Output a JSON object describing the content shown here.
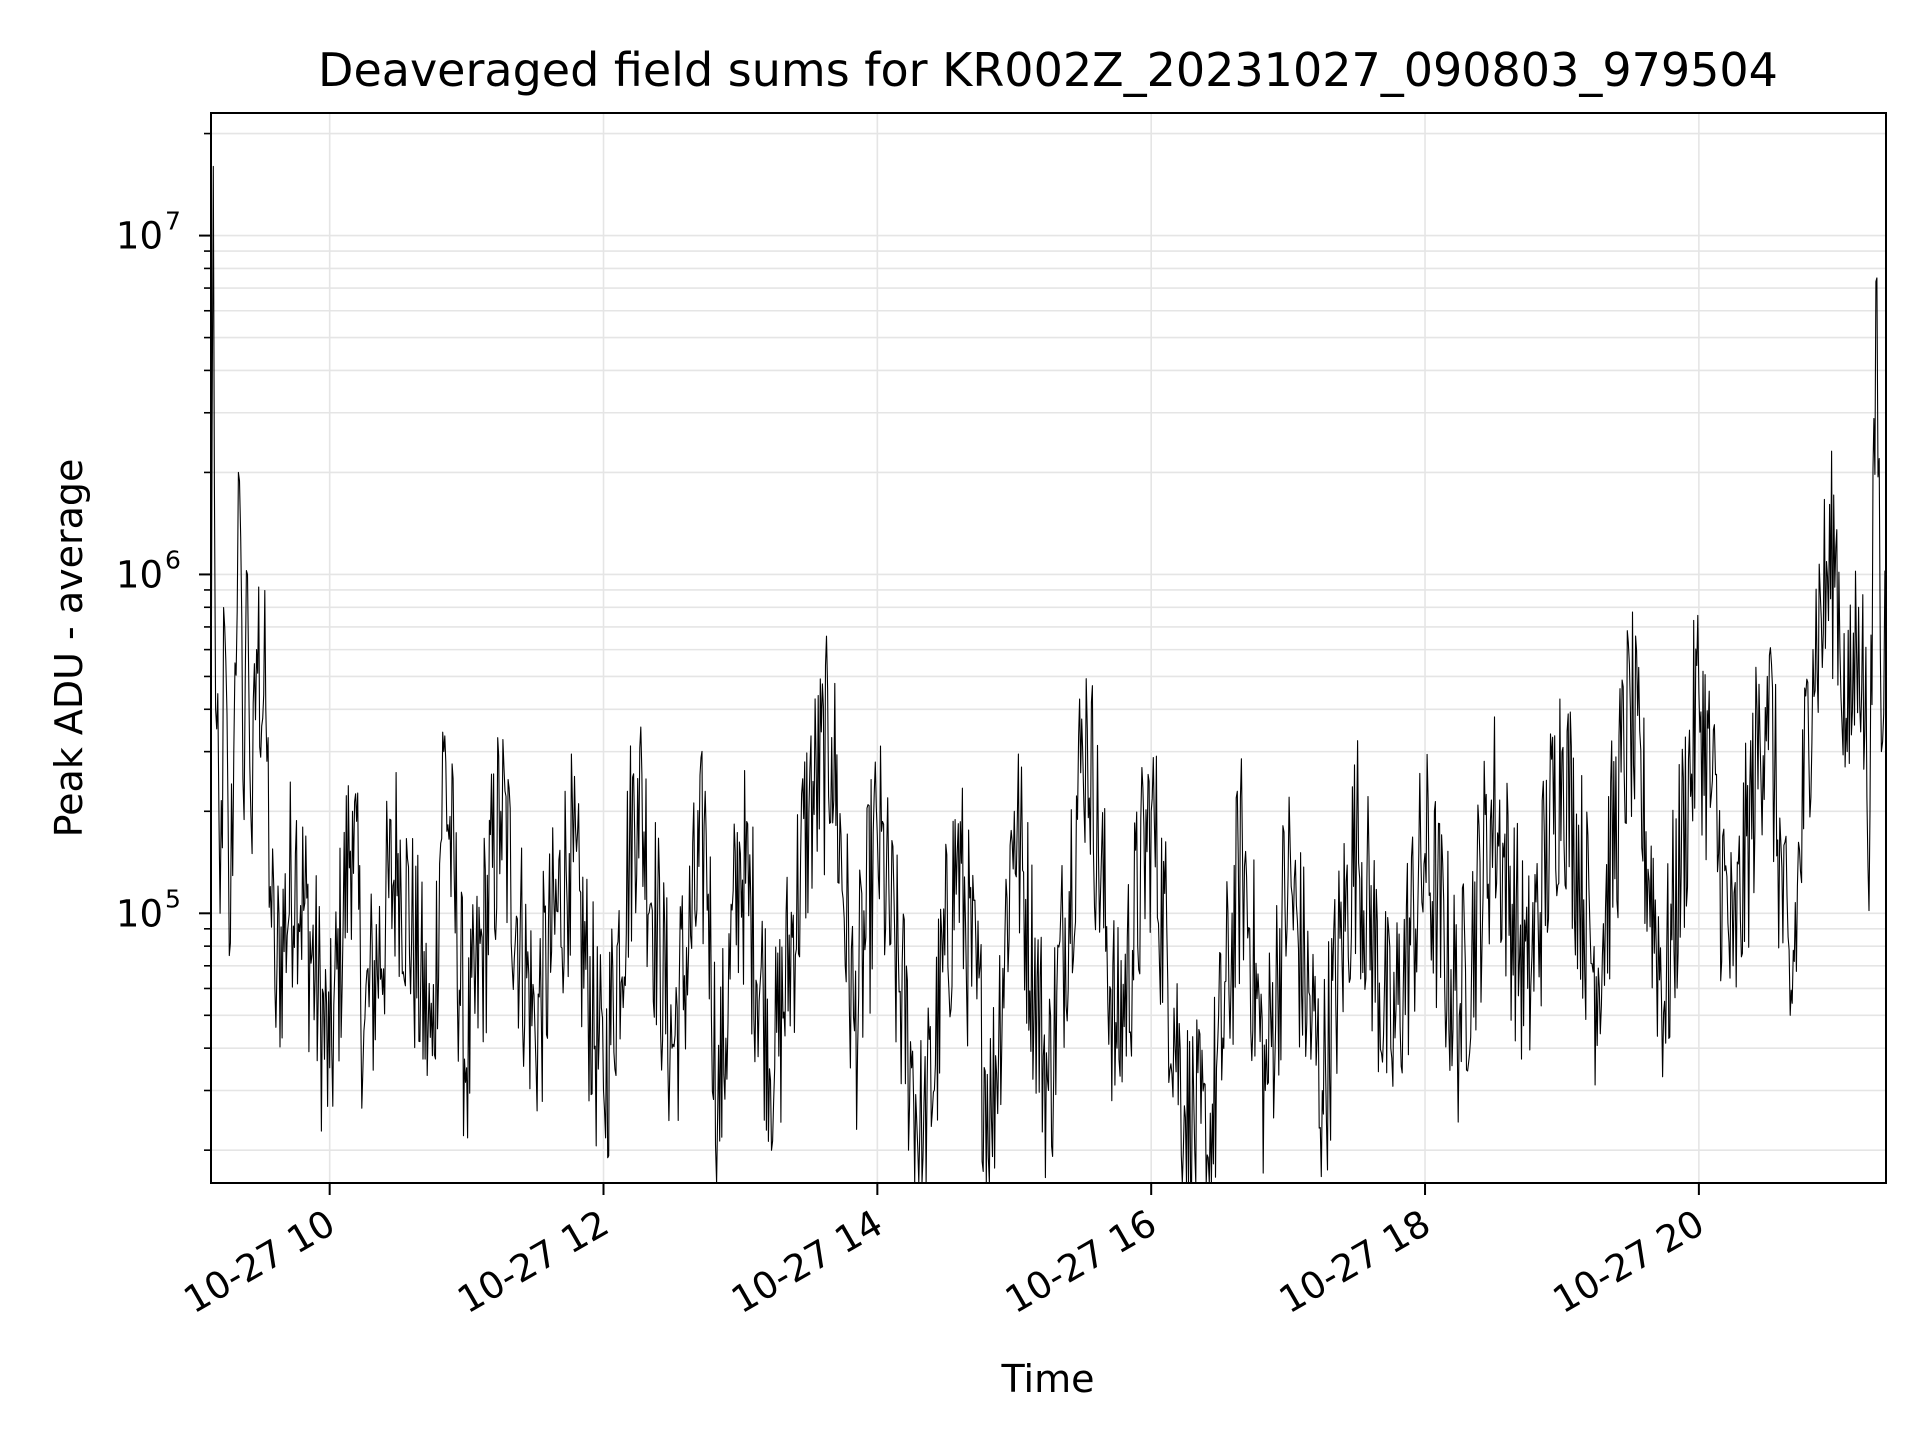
{
  "chart_data": {
    "type": "line",
    "title": "Deaveraged field sums for KR002Z_20231027_090803_979504",
    "xlabel": "Time",
    "ylabel": "Peak ADU - average",
    "yscale": "log",
    "ylim": [
      16000,
      23000000
    ],
    "xlim": [
      "10-27 09:08",
      "10-27 21:22"
    ],
    "grid": true,
    "legend": "none",
    "colors": {
      "line": "#000000",
      "grid": "#e5e5e5",
      "axes": "#000000",
      "background": "#ffffff"
    },
    "x_ticks": [
      {
        "x": "10-27 10:00",
        "label": "10-27 10"
      },
      {
        "x": "10-27 12:00",
        "label": "10-27 12"
      },
      {
        "x": "10-27 14:00",
        "label": "10-27 14"
      },
      {
        "x": "10-27 16:00",
        "label": "10-27 16"
      },
      {
        "x": "10-27 18:00",
        "label": "10-27 18"
      },
      {
        "x": "10-27 20:00",
        "label": "10-27 20"
      }
    ],
    "y_ticks": [
      {
        "value": 100000,
        "base": "10",
        "exp": "5"
      },
      {
        "value": 1000000,
        "base": "10",
        "exp": "6"
      },
      {
        "value": 10000000,
        "base": "10",
        "exp": "7"
      }
    ],
    "series": [
      {
        "points": [
          [
            "10-27 09:08",
            280000
          ],
          [
            "10-27 09:09",
            16000000
          ],
          [
            "10-27 09:10",
            400000
          ],
          [
            "10-27 09:12",
            100000
          ],
          [
            "10-27 09:14",
            700000
          ],
          [
            "10-27 09:16",
            75000
          ],
          [
            "10-27 09:18",
            300000
          ],
          [
            "10-27 09:20",
            2000000
          ],
          [
            "10-27 09:22",
            250000
          ],
          [
            "10-27 09:24",
            1000000
          ],
          [
            "10-27 09:26",
            150000
          ],
          [
            "10-27 09:28",
            600000
          ],
          [
            "10-27 09:32",
            400000
          ],
          [
            "10-27 09:34",
            120000
          ],
          [
            "10-27 09:36",
            60000
          ],
          [
            "10-27 09:45",
            150000
          ],
          [
            "10-27 10:00",
            35000
          ],
          [
            "10-27 10:10",
            200000
          ],
          [
            "10-27 10:15",
            45000
          ],
          [
            "10-27 10:30",
            150000
          ],
          [
            "10-27 10:45",
            38000
          ],
          [
            "10-27 10:50",
            300000
          ],
          [
            "10-27 11:00",
            35000
          ],
          [
            "10-27 11:15",
            200000
          ],
          [
            "10-27 11:30",
            45000
          ],
          [
            "10-27 11:45",
            150000
          ],
          [
            "10-27 12:00",
            30000
          ],
          [
            "10-27 12:15",
            250000
          ],
          [
            "10-27 12:30",
            40000
          ],
          [
            "10-27 12:45",
            170000
          ],
          [
            "10-27 12:50",
            25000
          ],
          [
            "10-27 13:00",
            150000
          ],
          [
            "10-27 13:15",
            35000
          ],
          [
            "10-27 13:30",
            200000
          ],
          [
            "10-27 13:40",
            330000
          ],
          [
            "10-27 13:50",
            45000
          ],
          [
            "10-27 14:00",
            170000
          ],
          [
            "10-27 14:15",
            35000
          ],
          [
            "10-27 14:20",
            19000
          ],
          [
            "10-27 14:35",
            150000
          ],
          [
            "10-27 14:50",
            25000
          ],
          [
            "10-27 15:00",
            200000
          ],
          [
            "10-27 15:15",
            30000
          ],
          [
            "10-27 15:30",
            300000
          ],
          [
            "10-27 15:32",
            350000
          ],
          [
            "10-27 15:45",
            40000
          ],
          [
            "10-27 16:00",
            200000
          ],
          [
            "10-27 16:15",
            25000
          ],
          [
            "10-27 16:25",
            19000
          ],
          [
            "10-27 16:40",
            150000
          ],
          [
            "10-27 16:50",
            30000
          ],
          [
            "10-27 17:00",
            130000
          ],
          [
            "10-27 17:15",
            30000
          ],
          [
            "10-27 17:30",
            170000
          ],
          [
            "10-27 17:45",
            40000
          ],
          [
            "10-27 18:00",
            150000
          ],
          [
            "10-27 18:15",
            50000
          ],
          [
            "10-27 18:30",
            200000
          ],
          [
            "10-27 18:45",
            60000
          ],
          [
            "10-27 19:00",
            300000
          ],
          [
            "10-27 19:15",
            65000
          ],
          [
            "10-27 19:30",
            400000
          ],
          [
            "10-27 19:45",
            55000
          ],
          [
            "10-27 20:00",
            450000
          ],
          [
            "10-27 20:15",
            70000
          ],
          [
            "10-27 20:30",
            500000
          ],
          [
            "10-27 20:40",
            50000
          ],
          [
            "10-27 20:50",
            600000
          ],
          [
            "10-27 21:00",
            1200000
          ],
          [
            "10-27 21:05",
            300000
          ],
          [
            "10-27 21:10",
            800000
          ],
          [
            "10-27 21:15",
            200000
          ],
          [
            "10-27 21:18",
            7500000
          ],
          [
            "10-27 21:20",
            300000
          ],
          [
            "10-27 21:22",
            900000
          ]
        ]
      }
    ]
  }
}
